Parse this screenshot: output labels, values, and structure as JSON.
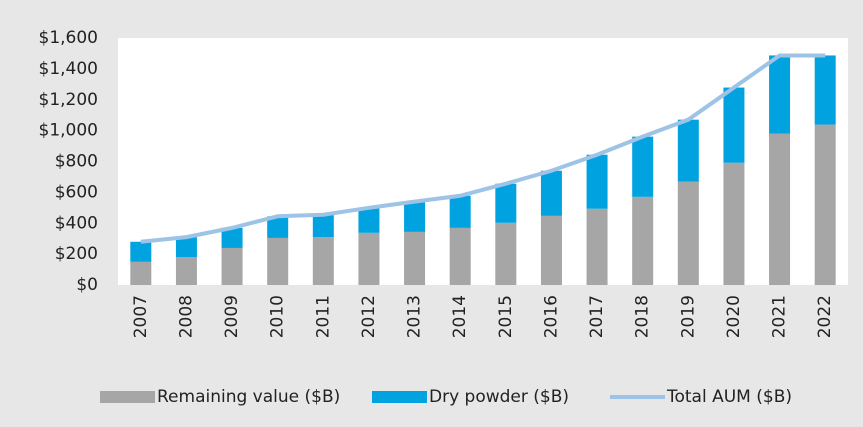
{
  "chart_data": {
    "type": "bar",
    "stacked": true,
    "categories": [
      "2007",
      "2008",
      "2009",
      "2010",
      "2011",
      "2012",
      "2013",
      "2014",
      "2015",
      "2016",
      "2017",
      "2018",
      "2019",
      "2020",
      "2021",
      "2022"
    ],
    "series": [
      {
        "name": "Remaining value ($B)",
        "color": "#a6a6a6",
        "values": [
          150,
          180,
          240,
          305,
          310,
          338,
          344,
          370,
          403,
          448,
          494,
          571,
          669,
          792,
          980,
          1039
        ]
      },
      {
        "name": "Dry powder ($B)",
        "color": "#00a2e0",
        "values": [
          130,
          130,
          130,
          140,
          145,
          162,
          196,
          208,
          253,
          292,
          350,
          390,
          402,
          487,
          507,
          448
        ]
      },
      {
        "name": "Total AUM ($B)",
        "color": "#9dc3e6",
        "type": "line",
        "values": [
          280,
          310,
          370,
          445,
          455,
          500,
          540,
          578,
          656,
          740,
          844,
          961,
          1071,
          1279,
          1487,
          1487
        ]
      }
    ],
    "ylim": [
      0,
      1600
    ],
    "yticks": [
      {
        "value": 0,
        "label": "$0"
      },
      {
        "value": 200,
        "label": "$200"
      },
      {
        "value": 400,
        "label": "$400"
      },
      {
        "value": 600,
        "label": "$600"
      },
      {
        "value": 800,
        "label": "$800"
      },
      {
        "value": 1000,
        "label": "$1,000"
      },
      {
        "value": 1200,
        "label": "$1,200"
      },
      {
        "value": 1400,
        "label": "$1,400"
      },
      {
        "value": 1600,
        "label": "$1,600"
      }
    ],
    "legend": "bottom"
  }
}
